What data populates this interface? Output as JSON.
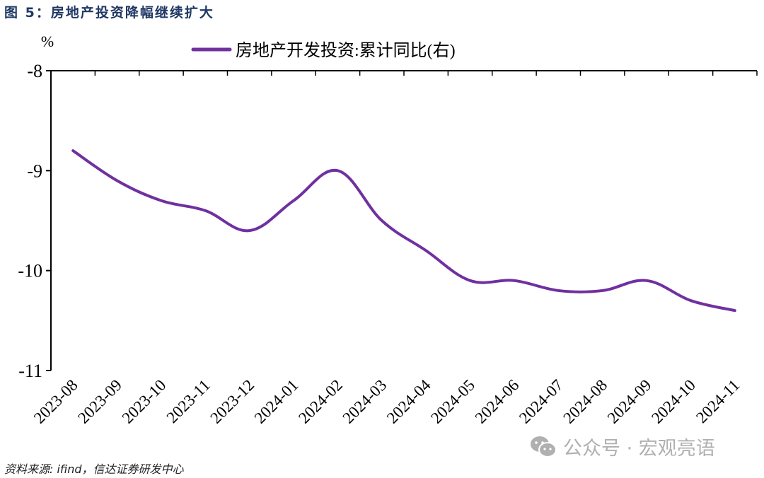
{
  "figure": {
    "title": "图 5：房地产投资降幅继续扩大",
    "source": "资料来源: ifind，信达证券研发中心",
    "watermark": "公众号 · 宏观亮语",
    "watermark_icon": "wechat-icon"
  },
  "colors": {
    "title": "#1f3864",
    "series": "#7030a0",
    "axis": "#000000",
    "watermark": "#b0b0b0"
  },
  "chart_data": {
    "type": "line",
    "title": "图 5：房地产投资降幅继续扩大",
    "xlabel": "",
    "ylabel": "%",
    "ylim": [
      -11,
      -8
    ],
    "y_ticks": [
      -8,
      -9,
      -10,
      -11
    ],
    "y_axis_inverted": true,
    "grid": false,
    "legend_position": "top",
    "categories": [
      "2023-08",
      "2023-09",
      "2023-10",
      "2023-11",
      "2023-12",
      "2024-01",
      "2024-02",
      "2024-03",
      "2024-04",
      "2024-05",
      "2024-06",
      "2024-07",
      "2024-08",
      "2024-09",
      "2024-10",
      "2024-11"
    ],
    "series": [
      {
        "name": "房地产开发投资:累计同比(右)",
        "color": "#7030a0",
        "values": [
          -8.8,
          -9.1,
          -9.3,
          -9.4,
          -9.6,
          -9.3,
          -9.0,
          -9.5,
          -9.8,
          -10.1,
          -10.1,
          -10.2,
          -10.2,
          -10.1,
          -10.3,
          -10.4
        ]
      }
    ]
  }
}
